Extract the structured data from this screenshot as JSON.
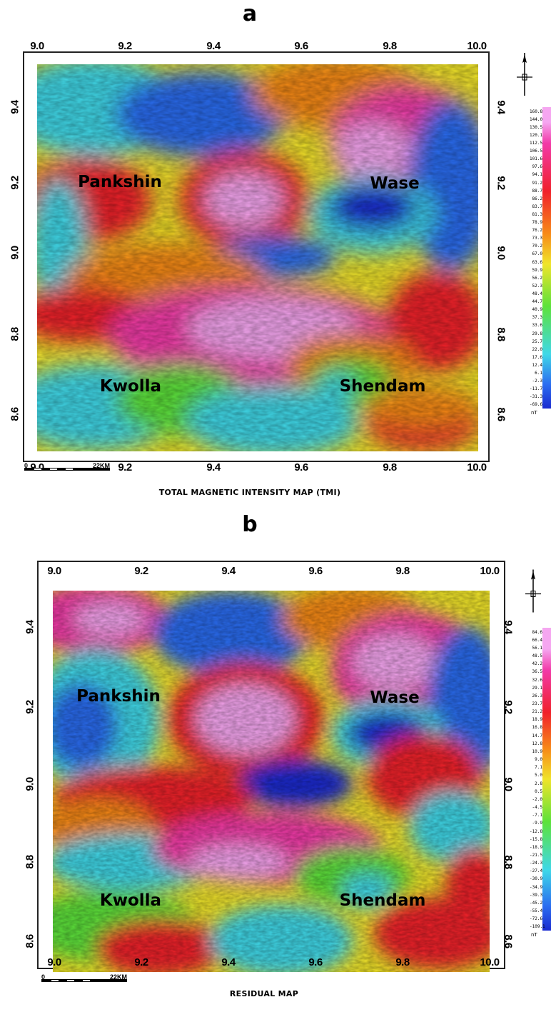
{
  "panels": [
    {
      "letter": "a",
      "caption": "TOTAL MAGNETIC INTENSITY MAP (TMI)",
      "lon_ticks": [
        "9.0",
        "9.2",
        "9.4",
        "9.6",
        "9.8",
        "10.0"
      ],
      "lat_ticks": [
        "9.4",
        "9.2",
        "9.0",
        "8.8",
        "8.6"
      ],
      "places": {
        "pankshin": "Pankshin",
        "wase": "Wase",
        "kwolla": "Kwolla",
        "shendam": "Shendam"
      },
      "scale": {
        "zero": "0",
        "distance": "22KM"
      },
      "legend": {
        "unit": "nT",
        "values": [
          "160.8",
          "144.0",
          "130.5",
          "120.1",
          "112.5",
          "106.5",
          "101.6",
          "97.6",
          "94.1",
          "91.2",
          "88.7",
          "86.2",
          "83.7",
          "81.3",
          "78.9",
          "76.2",
          "73.3",
          "70.2",
          "67.0",
          "63.6",
          "59.9",
          "56.2",
          "52.3",
          "48.4",
          "44.7",
          "40.9",
          "37.3",
          "33.6",
          "29.8",
          "25.7",
          "22.0",
          "17.6",
          "12.4",
          "6.1",
          "-2.3",
          "-11.7",
          "-31.3",
          "-69.6"
        ]
      }
    },
    {
      "letter": "b",
      "caption": "RESIDUAL MAP",
      "lon_ticks": [
        "9.0",
        "9.2",
        "9.4",
        "9.6",
        "9.8",
        "10.0"
      ],
      "lat_ticks": [
        "9.4",
        "9.2",
        "9.0",
        "8.8",
        "8.6"
      ],
      "places": {
        "pankshin": "Pankshin",
        "wase": "Wase",
        "kwolla": "Kwolla",
        "shendam": "Shendam"
      },
      "scale": {
        "zero": "0",
        "distance": "22KM"
      },
      "legend": {
        "unit": "nT",
        "values": [
          "84.6",
          "66.4",
          "56.1",
          "48.5",
          "42.2",
          "36.5",
          "32.6",
          "29.1",
          "26.3",
          "23.7",
          "21.2",
          "18.9",
          "16.8",
          "14.7",
          "12.8",
          "10.9",
          "9.0",
          "7.1",
          "5.0",
          "2.8",
          "0.5",
          "-2.0",
          "-4.5",
          "-7.1",
          "-9.9",
          "-12.8",
          "-15.8",
          "-18.9",
          "-21.5",
          "-24.3",
          "-27.4",
          "-30.9",
          "-34.9",
          "-39.3",
          "-45.2",
          "-55.4",
          "-72.6",
          "-109.1"
        ]
      }
    }
  ],
  "colors": {
    "pink": "#f5a6f0",
    "magenta": "#f23aa8",
    "red": "#f0202a",
    "orange": "#f78a18",
    "yellow": "#f0e42a",
    "green": "#5de23a",
    "cyan": "#3fd8e8",
    "blue": "#2a6cf0",
    "darkblue": "#1a2ad0"
  }
}
